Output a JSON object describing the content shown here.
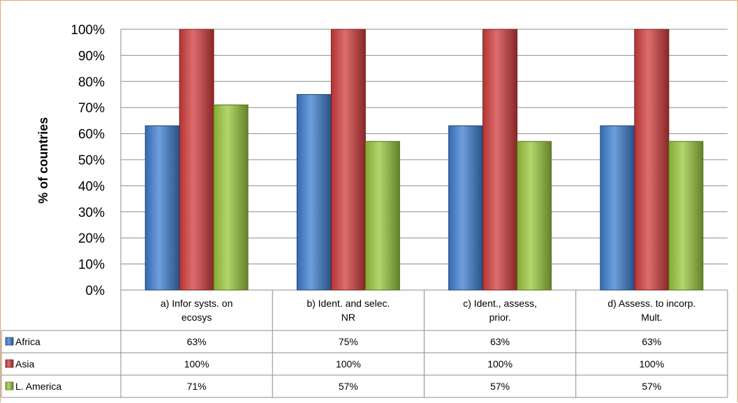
{
  "chart_data": {
    "type": "bar",
    "ylabel": "% of countries",
    "ylim": [
      0,
      100
    ],
    "y_ticks": [
      "0%",
      "10%",
      "20%",
      "30%",
      "40%",
      "50%",
      "60%",
      "70%",
      "80%",
      "90%",
      "100%"
    ],
    "grid": true,
    "categories": [
      [
        "a) Infor systs. on",
        "ecosys"
      ],
      [
        "b) Ident. and selec.",
        "NR"
      ],
      [
        "c) Ident., assess,",
        "prior."
      ],
      [
        "d) Assess. to incorp.",
        "Mult."
      ]
    ],
    "series": [
      {
        "name": "Africa",
        "values": [
          63,
          75,
          63,
          63
        ],
        "labels": [
          "63%",
          "75%",
          "63%",
          "63%"
        ],
        "color": "#3d7dd0"
      },
      {
        "name": "Asia",
        "values": [
          100,
          100,
          100,
          100
        ],
        "labels": [
          "100%",
          "100%",
          "100%",
          "100%"
        ],
        "color": "#d23c3c"
      },
      {
        "name": "L. America",
        "values": [
          71,
          57,
          57,
          57
        ],
        "labels": [
          "71%",
          "57%",
          "57%",
          "57%"
        ],
        "color": "#9ac83c"
      }
    ],
    "legend": "data-table"
  }
}
